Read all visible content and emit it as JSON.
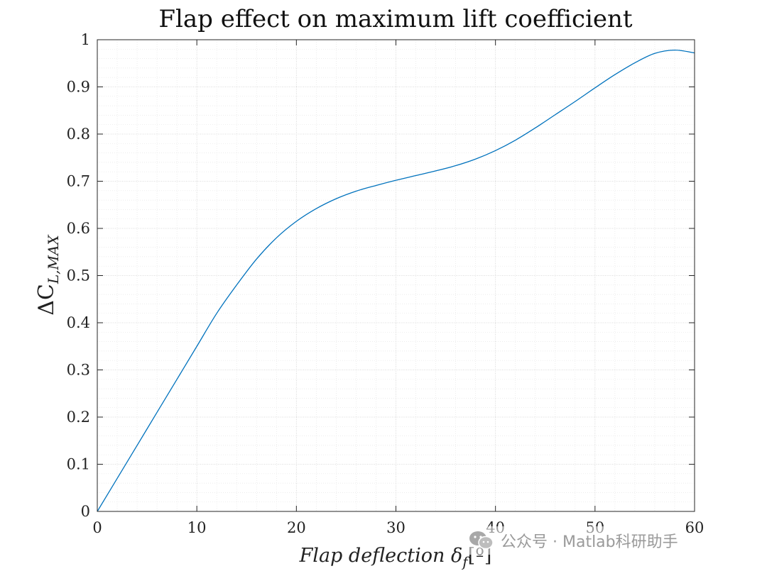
{
  "chart_data": {
    "type": "line",
    "title": "Flap effect on maximum lift coefficient",
    "xlabel": "Flap deflection δ",
    "xlabel_sub": "f",
    "xlabel_unit": "[º]",
    "ylabel": "ΔC",
    "ylabel_sub": "L,MAX",
    "xlim": [
      0,
      60
    ],
    "ylim": [
      0,
      1
    ],
    "xticks": [
      0,
      10,
      20,
      30,
      40,
      50,
      60
    ],
    "xtick_labels": [
      "0",
      "10",
      "20",
      "30",
      "40",
      "50",
      "60"
    ],
    "yticks": [
      0,
      0.1,
      0.2,
      0.3,
      0.4,
      0.5,
      0.6,
      0.7,
      0.8,
      0.9,
      1
    ],
    "ytick_labels": [
      "0",
      "0.1",
      "0.2",
      "0.3",
      "0.4",
      "0.5",
      "0.6",
      "0.7",
      "0.8",
      "0.9",
      "1"
    ],
    "grid": true,
    "minor_grid": true,
    "series": [
      {
        "name": "ΔCL,MAX",
        "color": "#0072BD",
        "x": [
          0,
          2,
          4,
          6,
          8,
          10,
          12,
          14,
          16,
          18,
          20,
          22,
          24,
          26,
          28,
          30,
          32,
          34,
          36,
          38,
          40,
          42,
          44,
          46,
          48,
          50,
          52,
          54,
          56,
          58,
          60
        ],
        "y": [
          0,
          0.07,
          0.14,
          0.21,
          0.28,
          0.35,
          0.42,
          0.48,
          0.535,
          0.58,
          0.615,
          0.642,
          0.663,
          0.679,
          0.691,
          0.702,
          0.712,
          0.722,
          0.733,
          0.747,
          0.765,
          0.787,
          0.813,
          0.841,
          0.869,
          0.898,
          0.926,
          0.951,
          0.971,
          0.978,
          0.972
        ]
      }
    ]
  },
  "watermark": {
    "text": "公众号 · Matlab科研助手",
    "icon": "wechat-icon"
  }
}
